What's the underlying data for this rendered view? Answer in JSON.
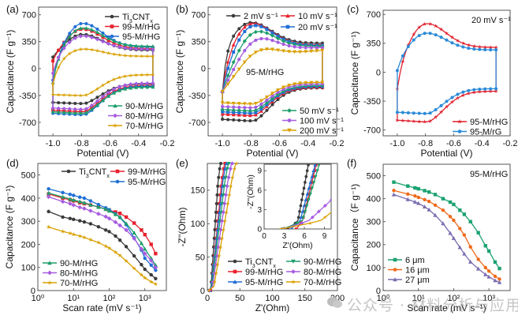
{
  "watermark": "公众号 · 材料分析与应用",
  "chart_data": [
    {
      "id": "a",
      "panel_label": "(a)",
      "type": "line",
      "kind": "cv",
      "xlabel": "Potential (V)",
      "ylabel": "Capacitance (F g⁻¹)",
      "xlim": [
        -1.1,
        -0.2
      ],
      "ylim": [
        -875,
        800
      ],
      "xticks": [
        -1.0,
        -0.8,
        -0.6,
        -0.4,
        -0.2
      ],
      "xtick_labels": [
        "-1.0",
        "-0.8",
        "-0.6",
        "-0.4",
        "-0.2"
      ],
      "yticks": [
        -700,
        -350,
        0,
        350,
        700
      ],
      "ytick_labels": [
        "-700",
        "-350",
        "0",
        "350",
        "700"
      ],
      "legend": [
        {
          "position": "top-right",
          "entries": [
            "Ti3CNTx",
            "99-M/rHG",
            "95-M/rHG"
          ]
        },
        {
          "position": "bottom-right",
          "entries": [
            "90-M/rHG",
            "80-M/rHG",
            "70-M/rHG"
          ]
        }
      ],
      "series": [
        {
          "name": "Ti3CNTx",
          "color": "#3a3a3a",
          "marker": "circle",
          "peak_upper": 450,
          "plateau_upper": 240,
          "lower_min": -455,
          "lower_end": -200,
          "start_upper": 150
        },
        {
          "name": "99-M/rHG",
          "color": "#e8212e",
          "marker": "square",
          "peak_upper": 520,
          "plateau_upper": 260,
          "lower_min": -560,
          "lower_end": -220,
          "start_upper": 100
        },
        {
          "name": "95-M/rHG",
          "color": "#1f6fd6",
          "marker": "circle",
          "peak_upper": 600,
          "plateau_upper": 280,
          "lower_min": -600,
          "lower_end": -230,
          "start_upper": -150
        },
        {
          "name": "90-M/rHG",
          "color": "#1e9e6a",
          "marker": "triangle",
          "peak_upper": 540,
          "plateau_upper": 290,
          "lower_min": -580,
          "lower_end": -240,
          "start_upper": -180
        },
        {
          "name": "80-M/rHG",
          "color": "#a65ce0",
          "marker": "diamond",
          "peak_upper": 430,
          "plateau_upper": 250,
          "lower_min": -530,
          "lower_end": -190,
          "start_upper": -60
        },
        {
          "name": "70-M/rHG",
          "color": "#d9a000",
          "marker": "star",
          "peak_upper": 260,
          "plateau_upper": 160,
          "lower_min": -350,
          "lower_end": -80,
          "start_upper": -200
        }
      ]
    },
    {
      "id": "b",
      "panel_label": "(b)",
      "type": "line",
      "kind": "cv",
      "annotation": "95-M/rHG",
      "xlabel": "Potential (V)",
      "ylabel": "Capacitance (F g⁻¹)",
      "xlim": [
        -1.1,
        -0.2
      ],
      "ylim": [
        -875,
        800
      ],
      "xticks": [
        -1.0,
        -0.8,
        -0.6,
        -0.4,
        -0.2
      ],
      "xtick_labels": [
        "-1.0",
        "-0.8",
        "-0.6",
        "-0.4",
        "-0.2"
      ],
      "yticks": [
        -700,
        -350,
        0,
        350,
        700
      ],
      "ytick_labels": [
        "-700",
        "-350",
        "0",
        "350",
        "700"
      ],
      "legend": [
        {
          "position": "top",
          "entries": [
            "2 mV s⁻¹",
            "10 mV s⁻¹",
            "20 mV s⁻¹"
          ]
        },
        {
          "position": "bottom-right",
          "entries": [
            "50 mV s⁻¹",
            "100 mV s⁻¹",
            "200 mV s⁻¹"
          ]
        }
      ],
      "series": [
        {
          "name": "2 mV s⁻¹",
          "color": "#3a3a3a",
          "marker": "circle",
          "peak_upper": 600,
          "plateau_upper": 330,
          "lower_min": -680,
          "lower_end": -250,
          "rise": 0.03
        },
        {
          "name": "10 mV s⁻¹",
          "color": "#e8212e",
          "marker": "triangle",
          "peak_upper": 600,
          "plateau_upper": 310,
          "lower_min": -610,
          "lower_end": -240,
          "rise": 0.05
        },
        {
          "name": "20 mV s⁻¹",
          "color": "#1f6fd6",
          "marker": "square",
          "peak_upper": 600,
          "plateau_upper": 300,
          "lower_min": -580,
          "lower_end": -230,
          "rise": 0.07
        },
        {
          "name": "50 mV s⁻¹",
          "color": "#1e9e6a",
          "marker": "diamond",
          "peak_upper": 590,
          "plateau_upper": 290,
          "lower_min": -550,
          "lower_end": -220,
          "rise": 0.11
        },
        {
          "name": "100 mV s⁻¹",
          "color": "#a65ce0",
          "marker": "hexagon",
          "peak_upper": 580,
          "plateau_upper": 280,
          "lower_min": -510,
          "lower_end": -200,
          "rise": 0.16
        },
        {
          "name": "200 mV s⁻¹",
          "color": "#d9a000",
          "marker": "downtriangle",
          "peak_upper": 550,
          "plateau_upper": 270,
          "lower_min": -460,
          "lower_end": -180,
          "rise": 0.25
        }
      ]
    },
    {
      "id": "c",
      "panel_label": "(c)",
      "type": "line",
      "kind": "cv",
      "annotation": "20 mV s⁻¹",
      "xlabel": "Potential (V)",
      "ylabel": "Capacitance (F g⁻¹)",
      "xlim": [
        -1.1,
        -0.2
      ],
      "ylim": [
        -770,
        750
      ],
      "xticks": [
        -1.0,
        -0.8,
        -0.6,
        -0.4,
        -0.2
      ],
      "xtick_labels": [
        "-1.0",
        "-0.8",
        "-0.6",
        "-0.4",
        "-0.2"
      ],
      "yticks": [
        -700,
        -350,
        0,
        350,
        700
      ],
      "ytick_labels": [
        "-700",
        "-350",
        "0",
        "350",
        "700"
      ],
      "legend": [
        {
          "position": "bottom-right",
          "entries": [
            "95-M/rHG",
            "95-M/rG"
          ]
        }
      ],
      "series": [
        {
          "name": "95-M/rHG",
          "color": "#e0202e",
          "marker": "star",
          "peak_upper": 600,
          "plateau_upper": 300,
          "lower_min": -600,
          "lower_end": -230,
          "start_upper": -200
        },
        {
          "name": "95-M/rG",
          "color": "#2a8ad8",
          "marker": "circle",
          "peak_upper": 480,
          "plateau_upper": 270,
          "lower_min": -500,
          "lower_end": -200,
          "start_upper": 20
        }
      ]
    },
    {
      "id": "d",
      "panel_label": "(d)",
      "type": "line",
      "xscale": "log",
      "xlabel": "Scan rate (mV s⁻¹)",
      "ylabel": "Capacitance (F g⁻¹)",
      "xlim": [
        1,
        4000
      ],
      "ylim": [
        0,
        550
      ],
      "xticks": [
        1,
        10,
        100,
        1000
      ],
      "xtick_labels": [
        "10⁰",
        "10¹",
        "10²",
        "10³"
      ],
      "yticks": [
        0,
        100,
        200,
        300,
        400,
        500
      ],
      "ytick_labels": [
        "0",
        "100",
        "200",
        "300",
        "400",
        "500"
      ],
      "legend": [
        {
          "position": "top-right",
          "entries": [
            "Ti3CNTx",
            "99-M/rHG",
            "95-M/rHG"
          ]
        },
        {
          "position": "bottom-left",
          "entries": [
            "90-M/rHG",
            "80-M/rHG",
            "70-M/rHG"
          ]
        }
      ],
      "x": [
        2,
        5,
        8,
        10,
        15,
        20,
        30,
        50,
        80,
        100,
        150,
        200,
        300,
        500,
        800,
        1000,
        1500,
        2000
      ],
      "series": [
        {
          "name": "Ti3CNTx",
          "color": "#3a3a3a",
          "marker": "circle",
          "values": [
            342,
            318,
            312,
            308,
            302,
            297,
            289,
            276,
            262,
            255,
            236,
            218,
            190,
            150,
            112,
            92,
            68,
            52
          ]
        },
        {
          "name": "99-M/rHG",
          "color": "#e8212e",
          "marker": "square",
          "values": [
            418,
            400,
            393,
            388,
            380,
            376,
            370,
            362,
            352,
            348,
            340,
            334,
            318,
            292,
            262,
            242,
            200,
            160
          ]
        },
        {
          "name": "95-M/rHG",
          "color": "#1f6fd6",
          "marker": "circle",
          "values": [
            440,
            424,
            416,
            412,
            404,
            400,
            388,
            372,
            358,
            350,
            332,
            316,
            285,
            228,
            175,
            140,
            110,
            88
          ]
        },
        {
          "name": "90-M/rHG",
          "color": "#1e9e6a",
          "marker": "triangle",
          "values": [
            422,
            405,
            396,
            392,
            385,
            380,
            371,
            361,
            352,
            345,
            330,
            318,
            290,
            250,
            205,
            180,
            140,
            110
          ]
        },
        {
          "name": "80-M/rHG",
          "color": "#a65ce0",
          "marker": "diamond",
          "values": [
            406,
            385,
            376,
            370,
            360,
            355,
            345,
            332,
            320,
            312,
            296,
            282,
            262,
            225,
            180,
            160,
            130,
            100
          ]
        },
        {
          "name": "70-M/rHG",
          "color": "#d9a000",
          "marker": "star",
          "values": [
            275,
            256,
            248,
            243,
            236,
            230,
            220,
            208,
            192,
            184,
            166,
            152,
            128,
            96,
            68,
            55,
            38,
            28
          ]
        }
      ]
    },
    {
      "id": "e",
      "panel_label": "(e)",
      "type": "line",
      "kind": "nyquist",
      "xlabel": "Z'(Ohm)",
      "ylabel": "-Z''(Ohm)",
      "xlim": [
        0,
        200
      ],
      "ylim": [
        0,
        190
      ],
      "xticks": [
        0,
        50,
        100,
        150,
        200
      ],
      "xtick_labels": [
        "0",
        "50",
        "100",
        "150",
        "200"
      ],
      "yticks": [
        0,
        50,
        100,
        150
      ],
      "ytick_labels": [
        "0",
        "50",
        "100",
        "150"
      ],
      "legend": [
        {
          "position": "bottom-right",
          "columns": 2,
          "entries": [
            "Ti3CNTx",
            "99-M/rHG",
            "95-M/rHG",
            "90-M/rHG",
            "80-M/rHG",
            "70-M/rHG"
          ]
        }
      ],
      "series": [
        {
          "name": "Ti3CNTx",
          "color": "#3a3a3a",
          "marker": "circle",
          "x0": 3.5,
          "knee": 5.2,
          "slope": 13.0
        },
        {
          "name": "99-M/rHG",
          "color": "#e8212e",
          "marker": "square",
          "x0": 4.8,
          "knee": 5.8,
          "slope": 9.0
        },
        {
          "name": "95-M/rHG",
          "color": "#1f6fd6",
          "marker": "triangle",
          "x0": 4.0,
          "knee": 5.5,
          "slope": 8.0
        },
        {
          "name": "90-M/rHG",
          "color": "#1e9e6a",
          "marker": "downtriangle",
          "x0": 2.8,
          "knee": 6.0,
          "slope": 7.0
        },
        {
          "name": "80-M/rHG",
          "color": "#a65ce0",
          "marker": "diamond",
          "x0": 2.8,
          "knee": 7.0,
          "slope": 6.0
        },
        {
          "name": "70-M/rHG",
          "color": "#d9a000",
          "marker": "star",
          "x0": 2.5,
          "knee": 9.0,
          "slope": 5.2
        }
      ],
      "inset": {
        "xlabel": "Z'(Ohm)",
        "ylabel": "-Z''(Ohm)",
        "xlim": [
          0,
          10
        ],
        "ylim": [
          0,
          10
        ],
        "xticks": [
          0,
          3,
          6,
          9
        ],
        "xtick_labels": [
          "0",
          "3",
          "6",
          "9"
        ],
        "yticks": [
          0,
          3,
          6,
          9
        ],
        "ytick_labels": [
          "0",
          "3",
          "6",
          "9"
        ]
      }
    },
    {
      "id": "f",
      "panel_label": "(f)",
      "type": "line",
      "xscale": "log",
      "annotation": "95-M/rHG",
      "xlabel": "Scan rate (mV s⁻¹)",
      "ylabel": "Capacitance（F g⁻¹)",
      "xlim": [
        1,
        4000
      ],
      "ylim": [
        0,
        550
      ],
      "xticks": [
        1,
        10,
        100,
        1000
      ],
      "xtick_labels": [
        "10⁰",
        "10¹",
        "10²",
        "10³"
      ],
      "yticks": [
        0,
        100,
        200,
        300,
        400,
        500
      ],
      "ytick_labels": [
        "0",
        "100",
        "200",
        "300",
        "400",
        "500"
      ],
      "legend": [
        {
          "position": "bottom-left",
          "entries": [
            "6 μm",
            "16 μm",
            "27 μm"
          ]
        }
      ],
      "x": [
        2,
        5,
        8,
        10,
        15,
        20,
        30,
        50,
        80,
        100,
        150,
        200,
        300,
        500,
        800,
        1000,
        1500,
        2000
      ],
      "series": [
        {
          "name": "6 μm",
          "color": "#1aa270",
          "marker": "square",
          "values": [
            472,
            455,
            447,
            443,
            435,
            429,
            418,
            400,
            385,
            375,
            350,
            332,
            300,
            252,
            195,
            172,
            124,
            96
          ]
        },
        {
          "name": "16 μm",
          "color": "#ef6a1a",
          "marker": "circle",
          "values": [
            436,
            420,
            412,
            406,
            396,
            388,
            372,
            350,
            322,
            306,
            270,
            242,
            190,
            136,
            100,
            85,
            62,
            50
          ]
        },
        {
          "name": "27 μm",
          "color": "#7a6cb0",
          "marker": "triangle",
          "values": [
            418,
            397,
            386,
            380,
            365,
            352,
            328,
            292,
            250,
            228,
            188,
            160,
            125,
            95,
            70,
            60,
            44,
            36
          ]
        }
      ]
    }
  ]
}
